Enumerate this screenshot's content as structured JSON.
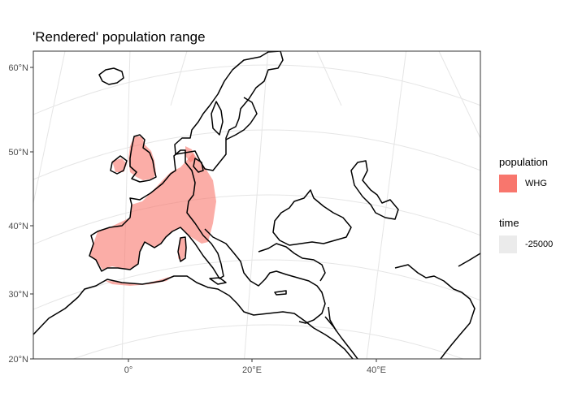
{
  "title": "'Rendered' population range",
  "axes": {
    "y_ticks": [
      "60°N",
      "50°N",
      "40°N",
      "30°N",
      "20°N"
    ],
    "x_ticks": [
      "0°",
      "20°E",
      "40°E"
    ]
  },
  "legend": {
    "population": {
      "title": "population",
      "items": [
        {
          "label": "WHG",
          "color": "#F8766D"
        }
      ]
    },
    "time": {
      "title": "time",
      "items": [
        {
          "label": "-25000",
          "color": "#EBEBEB"
        }
      ]
    }
  },
  "colors": {
    "range_fill": "#F8766D",
    "coastline": "#000000",
    "graticule": "#E5E5E5",
    "panel_border": "#333333"
  }
}
